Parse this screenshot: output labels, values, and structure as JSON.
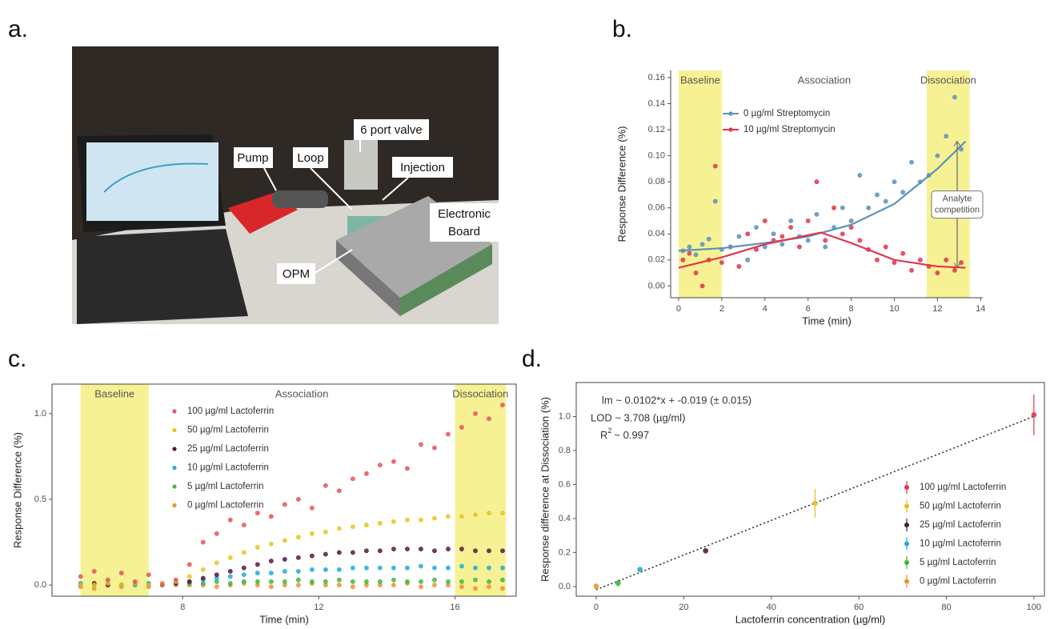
{
  "photo": {
    "panel_label": "a.",
    "labels": {
      "pump": "Pump",
      "loop": "Loop",
      "valve": "6 port valve",
      "injection": "Injection",
      "board": [
        "Electronic",
        "Board"
      ],
      "opm": "OPM"
    }
  },
  "chart_data": [
    {
      "type": "scatter",
      "panel_label": "b.",
      "x_label": "Time (min)",
      "y_label": "Response Difference (%)",
      "xlim": [
        -0.37,
        14.1
      ],
      "xticks": [
        0,
        2,
        4,
        6,
        8,
        10,
        12,
        14
      ],
      "ylim": [
        -0.009,
        0.1655
      ],
      "yticks": [
        {
          "value": 0,
          "label": "0.00"
        },
        {
          "value": 0.02,
          "label": "0.02"
        },
        {
          "value": 0.04,
          "label": "0.04"
        },
        {
          "value": 0.06,
          "label": "0.06"
        },
        {
          "value": 0.08,
          "label": "0.08"
        },
        {
          "value": 0.1,
          "label": "0.10"
        },
        {
          "value": 0.12,
          "label": "0.12"
        },
        {
          "value": 0.14,
          "label": "0.14"
        },
        {
          "value": 0.16,
          "label": "0.16"
        }
      ],
      "region_color": "#f6f294",
      "regions": [
        {
          "label": "Baseline",
          "range": [
            0,
            2
          ],
          "shaded": true
        },
        {
          "label": "Association",
          "range": [
            2,
            11.5
          ],
          "shaded": false
        },
        {
          "label": "Dissociation",
          "range": [
            11.5,
            13.5
          ],
          "shaded": true
        }
      ],
      "annotation": [
        "Analyte",
        "competition"
      ],
      "x": [
        0.2,
        0.5,
        0.8,
        1.1,
        1.4,
        1.7,
        2.0,
        2.4,
        2.8,
        3.2,
        3.6,
        4.0,
        4.4,
        4.8,
        5.2,
        5.6,
        6.0,
        6.4,
        6.8,
        7.2,
        7.6,
        8.0,
        8.4,
        8.8,
        9.2,
        9.6,
        10.0,
        10.4,
        10.8,
        11.2,
        11.6,
        12.0,
        12.4,
        12.8,
        13.1
      ],
      "series": [
        {
          "name": "0 µg/ml Streptomycin",
          "color": "#5a93bd",
          "values": [
            0.027,
            0.03,
            0.024,
            0.032,
            0.036,
            0.065,
            0.028,
            0.03,
            0.038,
            0.02,
            0.045,
            0.03,
            0.04,
            0.032,
            0.05,
            0.038,
            0.035,
            0.055,
            0.03,
            0.045,
            0.06,
            0.05,
            0.085,
            0.06,
            0.07,
            0.065,
            0.08,
            0.072,
            0.095,
            0.08,
            0.085,
            0.1,
            0.115,
            0.145,
            0.105
          ],
          "trend": {
            "x": [
              0,
              2,
              4,
              6,
              8,
              10,
              12,
              13.3
            ],
            "values": [
              0.027,
              0.029,
              0.033,
              0.038,
              0.047,
              0.063,
              0.09,
              0.111
            ]
          }
        },
        {
          "name": "10 µg/ml Streptomycin",
          "color": "#e3344c",
          "values": [
            0.02,
            0.025,
            0.01,
            0.0,
            0.02,
            0.092,
            0.018,
            0.03,
            0.015,
            0.04,
            0.028,
            0.05,
            0.035,
            0.038,
            0.045,
            0.03,
            0.05,
            0.08,
            0.035,
            0.06,
            0.04,
            0.045,
            0.035,
            0.028,
            0.02,
            0.03,
            0.018,
            0.025,
            0.012,
            0.02,
            0.015,
            0.01,
            0.02,
            0.012,
            0.018
          ],
          "trend": {
            "x": [
              0,
              2,
              4,
              6,
              6.6,
              8,
              10,
              12,
              13.3
            ],
            "values": [
              0.014,
              0.022,
              0.032,
              0.039,
              0.041,
              0.033,
              0.02,
              0.015,
              0.014
            ]
          }
        }
      ]
    },
    {
      "type": "scatter",
      "panel_label": "c.",
      "x_label": "Time (min)",
      "y_label": "Response Difference (%)",
      "xlim": [
        4.16,
        17.8
      ],
      "xticks": [
        8,
        12,
        16
      ],
      "ylim": [
        -0.065,
        1.172
      ],
      "yticks": [
        {
          "value": 0,
          "label": "0.0"
        },
        0.5,
        {
          "value": 1,
          "label": "1.0"
        }
      ],
      "region_color": "#f6f294",
      "regions": [
        {
          "label": "Baseline",
          "range": [
            5,
            7
          ],
          "shaded": true
        },
        {
          "label": "Association",
          "range": [
            7,
            16
          ],
          "shaded": false
        },
        {
          "label": "Dissociation",
          "range": [
            16,
            17.5
          ],
          "shaded": true
        }
      ],
      "x": [
        5.0,
        5.4,
        5.8,
        6.2,
        6.6,
        7.0,
        7.4,
        7.8,
        8.2,
        8.6,
        9.0,
        9.4,
        9.8,
        10.2,
        10.6,
        11.0,
        11.4,
        11.8,
        12.2,
        12.6,
        13.0,
        13.4,
        13.8,
        14.2,
        14.6,
        15.0,
        15.4,
        15.8,
        16.2,
        16.6,
        17.0,
        17.4
      ],
      "series": [
        {
          "name": "100 µg/ml Lactoferrin",
          "color": "#e8545f",
          "values": [
            0.05,
            0.08,
            0.03,
            0.07,
            0.02,
            0.06,
            0.0,
            0.03,
            0.12,
            0.25,
            0.3,
            0.38,
            0.35,
            0.42,
            0.4,
            0.47,
            0.5,
            0.45,
            0.58,
            0.55,
            0.62,
            0.65,
            0.7,
            0.72,
            0.68,
            0.82,
            0.8,
            0.88,
            0.92,
            1.0,
            0.97,
            1.05
          ]
        },
        {
          "name": "50 µg/ml Lactoferrin",
          "color": "#e8c623",
          "values": [
            0,
            0,
            0.01,
            0,
            0.01,
            0,
            0.01,
            0.02,
            0.05,
            0.09,
            0.13,
            0.16,
            0.19,
            0.22,
            0.24,
            0.26,
            0.28,
            0.3,
            0.31,
            0.33,
            0.34,
            0.35,
            0.36,
            0.37,
            0.38,
            0.38,
            0.39,
            0.4,
            0.4,
            0.41,
            0.42,
            0.42
          ]
        },
        {
          "name": "25 µg/ml Lactoferrin",
          "color": "#5a1a3e",
          "values": [
            0,
            0.01,
            0,
            0,
            0.01,
            0,
            0.01,
            0.01,
            0.02,
            0.04,
            0.06,
            0.08,
            0.1,
            0.12,
            0.14,
            0.15,
            0.16,
            0.17,
            0.18,
            0.19,
            0.19,
            0.2,
            0.2,
            0.21,
            0.21,
            0.21,
            0.2,
            0.21,
            0.21,
            0.2,
            0.2,
            0.2
          ]
        },
        {
          "name": "10 µg/ml Lactoferrin",
          "color": "#22aede",
          "values": [
            0.01,
            0,
            0.01,
            0,
            0,
            0.01,
            0,
            0.01,
            0.02,
            0.03,
            0.04,
            0.05,
            0.06,
            0.07,
            0.07,
            0.08,
            0.08,
            0.09,
            0.09,
            0.09,
            0.1,
            0.1,
            0.1,
            0.1,
            0.1,
            0.11,
            0.1,
            0.1,
            0.11,
            0.1,
            0.1,
            0.1
          ]
        },
        {
          "name": "5 µg/ml Lactoferrin",
          "color": "#43b845",
          "values": [
            0,
            0,
            0.01,
            0,
            0.01,
            0,
            0,
            0.01,
            0.01,
            0.01,
            0.02,
            0.01,
            0.02,
            0.02,
            0.02,
            0.02,
            0.03,
            0.02,
            0.02,
            0.03,
            0.02,
            0.02,
            0.02,
            0.03,
            0.02,
            0.02,
            0.03,
            0.02,
            0.02,
            0.03,
            0.02,
            0.03
          ]
        },
        {
          "name": "0 µg/ml Lactoferrin",
          "color": "#f0922e",
          "values": [
            -0.01,
            -0.02,
            0,
            -0.01,
            0,
            -0.01,
            0,
            0,
            0,
            0,
            -0.01,
            0,
            0.01,
            0,
            -0.01,
            0,
            0,
            0.01,
            0,
            0,
            -0.01,
            0,
            0,
            0,
            0.01,
            -0.01,
            0,
            0,
            -0.01,
            -0.02,
            -0.01,
            -0.02
          ]
        }
      ]
    },
    {
      "type": "errorbar",
      "panel_label": "d.",
      "x_label": "Lactoferrin concentration (µg/ml)",
      "y_label": "Response difference at Dissociation (%)",
      "xlim": [
        -4.57,
        102.4
      ],
      "xticks": [
        0,
        20,
        40,
        60,
        80,
        100
      ],
      "ylim": [
        -0.057,
        1.2
      ],
      "yticks": [
        {
          "value": 0,
          "label": "0.0"
        },
        0.2,
        0.4,
        0.6,
        0.8,
        {
          "value": 1,
          "label": "1.0"
        }
      ],
      "stats": {
        "lm": "lm ~ 0.0102*x + -0.019 (± 0.015)",
        "lod": "LOD ~ 3.708 (µg/ml)",
        "r2": {
          "symbol": "R",
          "superscript": "2",
          "text": "~ 0.997"
        }
      },
      "fit": {
        "x": [
          0,
          100
        ],
        "values": [
          -0.019,
          1.001
        ]
      },
      "series": [
        {
          "name": "100 µg/ml Lactoferrin",
          "color": "#e0344a",
          "x": [
            100
          ],
          "values": [
            1.01
          ],
          "errors": [
            0.12
          ]
        },
        {
          "name": "50 µg/ml Lactoferrin",
          "color": "#e6c020",
          "x": [
            50
          ],
          "values": [
            0.49
          ],
          "errors": [
            0.085
          ]
        },
        {
          "name": "25 µg/ml Lactoferrin",
          "color": "#4a1a3a",
          "x": [
            25
          ],
          "values": [
            0.21
          ],
          "errors": [
            0.005
          ]
        },
        {
          "name": "10 µg/ml Lactoferrin",
          "color": "#1fa9d6",
          "x": [
            10
          ],
          "values": [
            0.1
          ],
          "errors": [
            0.005
          ]
        },
        {
          "name": "5 µg/ml Lactoferrin",
          "color": "#3cb43c",
          "x": [
            5
          ],
          "values": [
            0.02
          ],
          "errors": [
            0.02
          ]
        },
        {
          "name": "0 µg/ml Lactoferrin",
          "color": "#f0902a",
          "x": [
            0
          ],
          "values": [
            0.0
          ],
          "errors": [
            0.02
          ]
        }
      ]
    }
  ]
}
